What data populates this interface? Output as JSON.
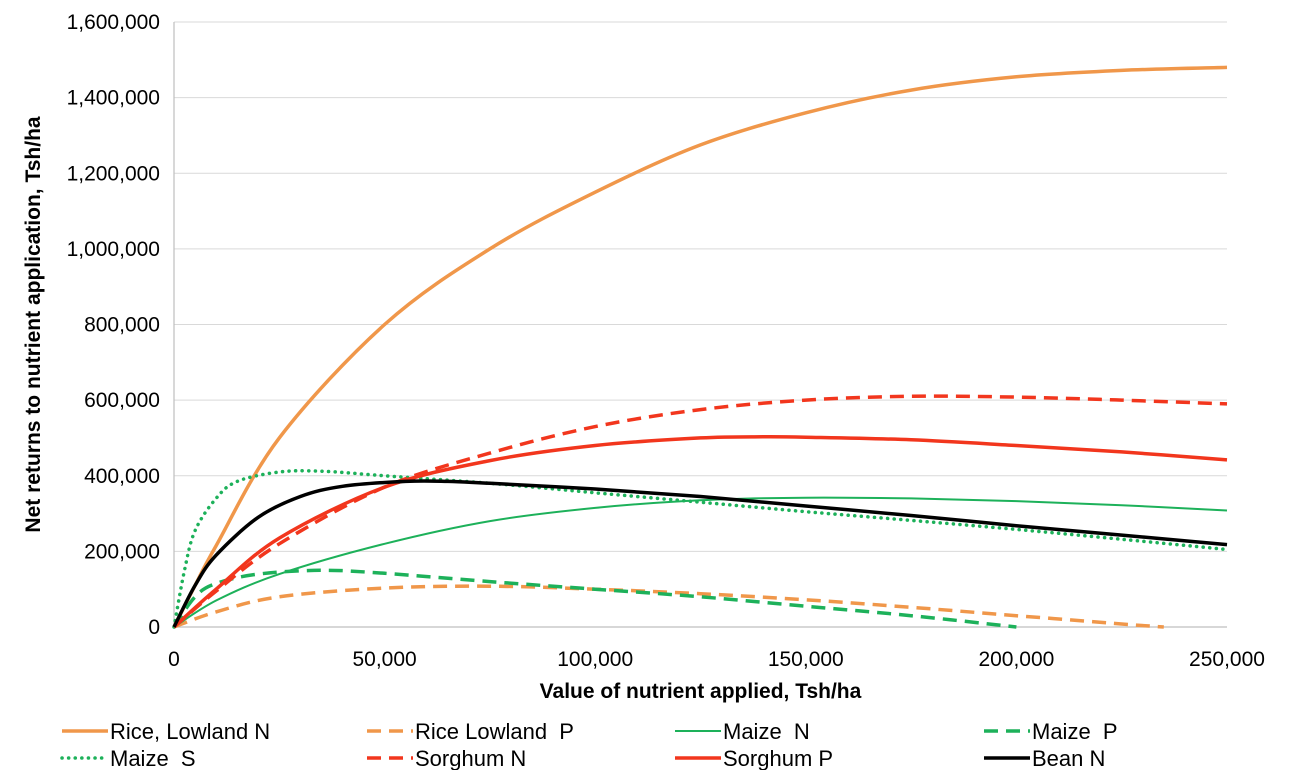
{
  "chart_data": {
    "type": "line",
    "title": "",
    "xlabel": "Value of nutrient applied, Tsh/ha",
    "ylabel": "Net returns to nutrient application, Tsh/ha",
    "xlim": [
      0,
      250000
    ],
    "ylim": [
      0,
      1600000
    ],
    "x_ticks": [
      "0",
      "50,000",
      "100,000",
      "150,000",
      "200,000",
      "250,000"
    ],
    "y_ticks": [
      "0",
      "200,000",
      "400,000",
      "600,000",
      "800,000",
      "1,000,000",
      "1,200,000",
      "1,400,000",
      "1,600,000"
    ],
    "grid": "horizontal",
    "legend_position": "bottom",
    "series": [
      {
        "name": "Rice, Lowland N",
        "color": "#F0974A",
        "dash": "solid",
        "width": "thick",
        "points": [
          [
            0,
            0
          ],
          [
            5000,
            110000
          ],
          [
            10000,
            215000
          ],
          [
            25000,
            500000
          ],
          [
            50000,
            800000
          ],
          [
            75000,
            1000000
          ],
          [
            100000,
            1150000
          ],
          [
            125000,
            1275000
          ],
          [
            150000,
            1360000
          ],
          [
            175000,
            1420000
          ],
          [
            200000,
            1455000
          ],
          [
            225000,
            1472000
          ],
          [
            250000,
            1480000
          ]
        ]
      },
      {
        "name": "Rice Lowland  P",
        "color": "#F0974A",
        "dash": "dashed",
        "width": "thick",
        "points": [
          [
            0,
            0
          ],
          [
            10000,
            40000
          ],
          [
            25000,
            80000
          ],
          [
            50000,
            103000
          ],
          [
            75000,
            108000
          ],
          [
            100000,
            100000
          ],
          [
            125000,
            88000
          ],
          [
            150000,
            72000
          ],
          [
            175000,
            52000
          ],
          [
            200000,
            30000
          ],
          [
            225000,
            8000
          ],
          [
            235000,
            0
          ]
        ]
      },
      {
        "name": "Maize  N",
        "color": "#1DB15A",
        "dash": "solid",
        "width": "thin",
        "points": [
          [
            0,
            0
          ],
          [
            10000,
            70000
          ],
          [
            25000,
            140000
          ],
          [
            50000,
            220000
          ],
          [
            75000,
            280000
          ],
          [
            100000,
            315000
          ],
          [
            125000,
            335000
          ],
          [
            150000,
            342000
          ],
          [
            175000,
            340000
          ],
          [
            200000,
            333000
          ],
          [
            225000,
            322000
          ],
          [
            250000,
            308000
          ]
        ]
      },
      {
        "name": "Maize  P",
        "color": "#1DB15A",
        "dash": "dashed",
        "width": "thick",
        "points": [
          [
            0,
            0
          ],
          [
            5000,
            80000
          ],
          [
            10000,
            115000
          ],
          [
            20000,
            140000
          ],
          [
            35000,
            150000
          ],
          [
            50000,
            142000
          ],
          [
            75000,
            120000
          ],
          [
            100000,
            100000
          ],
          [
            125000,
            80000
          ],
          [
            150000,
            55000
          ],
          [
            175000,
            30000
          ],
          [
            200000,
            0
          ]
        ]
      },
      {
        "name": "Maize  S",
        "color": "#1DB15A",
        "dash": "dotted",
        "width": "thick",
        "points": [
          [
            0,
            0
          ],
          [
            2500,
            150000
          ],
          [
            5000,
            255000
          ],
          [
            10000,
            340000
          ],
          [
            15000,
            385000
          ],
          [
            25000,
            410000
          ],
          [
            35000,
            412000
          ],
          [
            50000,
            400000
          ],
          [
            75000,
            380000
          ],
          [
            100000,
            355000
          ],
          [
            125000,
            330000
          ],
          [
            150000,
            305000
          ],
          [
            175000,
            282000
          ],
          [
            200000,
            258000
          ],
          [
            225000,
            232000
          ],
          [
            250000,
            205000
          ]
        ]
      },
      {
        "name": "Sorghum N",
        "color": "#F2361D",
        "dash": "dashed",
        "width": "thick",
        "points": [
          [
            0,
            0
          ],
          [
            10000,
            95000
          ],
          [
            25000,
            220000
          ],
          [
            50000,
            370000
          ],
          [
            75000,
            460000
          ],
          [
            100000,
            530000
          ],
          [
            125000,
            575000
          ],
          [
            150000,
            600000
          ],
          [
            175000,
            610000
          ],
          [
            200000,
            608000
          ],
          [
            225000,
            600000
          ],
          [
            250000,
            590000
          ]
        ]
      },
      {
        "name": "Sorghum P",
        "color": "#F2361D",
        "dash": "solid",
        "width": "thick",
        "points": [
          [
            0,
            0
          ],
          [
            10000,
            100000
          ],
          [
            25000,
            235000
          ],
          [
            50000,
            370000
          ],
          [
            75000,
            440000
          ],
          [
            100000,
            480000
          ],
          [
            125000,
            500000
          ],
          [
            140000,
            503000
          ],
          [
            150000,
            502000
          ],
          [
            175000,
            495000
          ],
          [
            200000,
            480000
          ],
          [
            225000,
            463000
          ],
          [
            250000,
            442000
          ]
        ]
      },
      {
        "name": "Bean N",
        "color": "#000000",
        "dash": "solid",
        "width": "thick",
        "points": [
          [
            0,
            0
          ],
          [
            5000,
            110000
          ],
          [
            10000,
            190000
          ],
          [
            20000,
            290000
          ],
          [
            30000,
            345000
          ],
          [
            40000,
            372000
          ],
          [
            55000,
            385000
          ],
          [
            65000,
            385000
          ],
          [
            75000,
            380000
          ],
          [
            100000,
            365000
          ],
          [
            125000,
            345000
          ],
          [
            150000,
            320000
          ],
          [
            175000,
            295000
          ],
          [
            200000,
            268000
          ],
          [
            225000,
            243000
          ],
          [
            250000,
            218000
          ]
        ]
      }
    ]
  }
}
